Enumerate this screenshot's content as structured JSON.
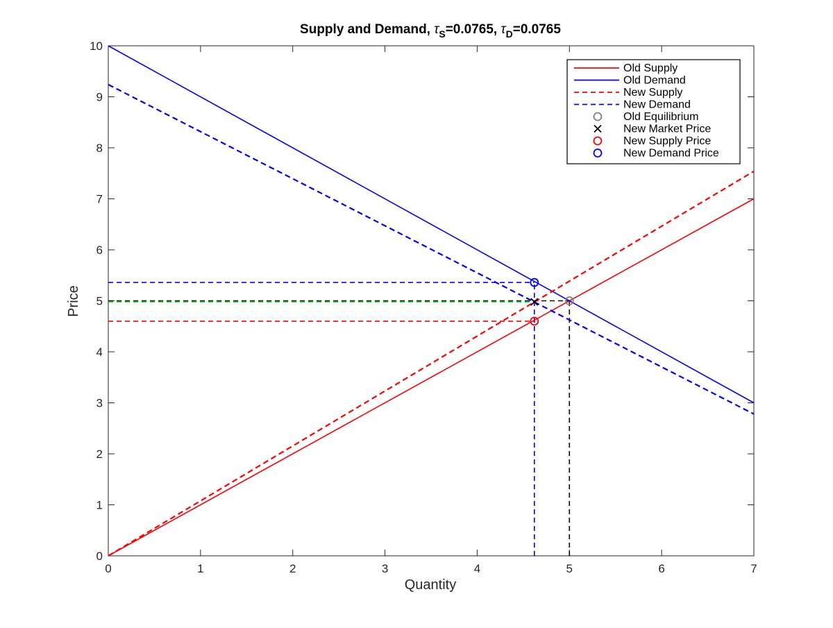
{
  "chart_data": {
    "type": "line",
    "title": {
      "prefix": "Supply and Demand, ",
      "tau_s_label": "S",
      "tau_s_value": "=0.0765, ",
      "tau_d_label": "D",
      "tau_d_value": "=0.0765",
      "tau_symbol": "τ"
    },
    "xlabel": "Quantity",
    "ylabel": "Price",
    "xlim": [
      0,
      7
    ],
    "ylim": [
      0,
      10
    ],
    "xticks": [
      0,
      1,
      2,
      3,
      4,
      5,
      6,
      7
    ],
    "yticks": [
      0,
      1,
      2,
      3,
      4,
      5,
      6,
      7,
      8,
      9,
      10
    ],
    "grid": false,
    "legend_position": "top-right",
    "series": [
      {
        "name": "Old Supply",
        "style": "solid",
        "color": "#ff0000",
        "x": [
          0,
          7
        ],
        "y": [
          0,
          7
        ]
      },
      {
        "name": "Old Demand",
        "style": "solid",
        "color": "#0000ff",
        "x": [
          0,
          7
        ],
        "y": [
          10,
          3
        ]
      },
      {
        "name": "New Supply",
        "style": "dashed",
        "color": "#ff0000",
        "x": [
          0,
          7
        ],
        "y": [
          0,
          7.54
        ]
      },
      {
        "name": "New Demand",
        "style": "dashed",
        "color": "#0000ff",
        "x": [
          0,
          7
        ],
        "y": [
          9.24,
          2.78
        ]
      },
      {
        "name": "Old Equilibrium",
        "marker": "circle",
        "color": "#808080",
        "x": [
          5
        ],
        "y": [
          5
        ]
      },
      {
        "name": "New Market Price",
        "marker": "x",
        "color": "#000000",
        "x": [
          4.62
        ],
        "y": [
          4.98
        ]
      },
      {
        "name": "New Supply Price",
        "marker": "circle",
        "color": "#ff0000",
        "x": [
          4.62
        ],
        "y": [
          4.6
        ]
      },
      {
        "name": "New Demand Price",
        "marker": "circle",
        "color": "#0000ff",
        "x": [
          4.62
        ],
        "y": [
          5.36
        ]
      }
    ],
    "reference_lines": [
      {
        "color": "#0000ff",
        "style": "dashed",
        "x": [
          0,
          4.62
        ],
        "y": [
          5.36,
          5.36
        ]
      },
      {
        "color": "#000000",
        "style": "dashed",
        "x": [
          0,
          5
        ],
        "y": [
          5,
          5
        ]
      },
      {
        "color": "#00cc00",
        "style": "dashed",
        "x": [
          0,
          4.62
        ],
        "y": [
          4.98,
          4.98
        ]
      },
      {
        "color": "#ff0000",
        "style": "dashed",
        "x": [
          0,
          4.62
        ],
        "y": [
          4.6,
          4.6
        ]
      },
      {
        "color": "#0000ff",
        "style": "dashed",
        "x": [
          4.62,
          4.62
        ],
        "y": [
          0,
          5.36
        ]
      },
      {
        "color": "#000000",
        "style": "dashed",
        "x": [
          5,
          5
        ],
        "y": [
          0,
          5
        ]
      }
    ]
  }
}
